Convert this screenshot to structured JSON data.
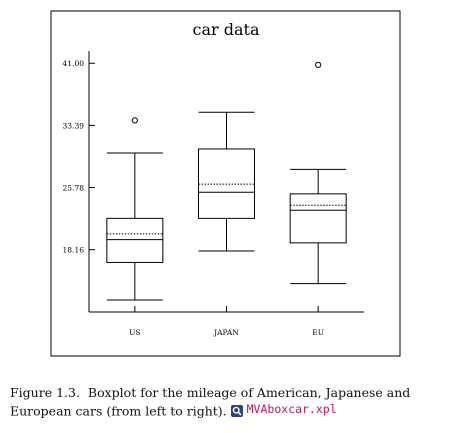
{
  "chart_data": {
    "type": "boxplot",
    "title": "car data",
    "categories": [
      "US",
      "JAPAN",
      "EU"
    ],
    "yticks": [
      "18.16",
      "25.78",
      "33.39",
      "41.00"
    ],
    "ylim": [
      12.0,
      42.5
    ],
    "boxes": [
      {
        "name": "US",
        "whisker_low": 12.0,
        "q1": 16.6,
        "median": 19.4,
        "mean": 20.1,
        "q3": 22.0,
        "whisker_high": 30.0,
        "outliers": [
          34.0
        ]
      },
      {
        "name": "JAPAN",
        "whisker_low": 18.0,
        "q1": 22.0,
        "median": 25.2,
        "mean": 26.2,
        "q3": 30.5,
        "whisker_high": 35.0,
        "outliers": []
      },
      {
        "name": "EU",
        "whisker_low": 14.0,
        "q1": 19.0,
        "median": 23.0,
        "mean": 23.6,
        "q3": 25.0,
        "whisker_high": 28.0,
        "outliers": [
          40.8
        ]
      }
    ]
  },
  "caption": {
    "label": "Figure 1.3.",
    "text": "Boxplot for the mileage of American, Japanese and European cars (from left to right).",
    "quantlet_icon": "magnifier-icon",
    "quantlet_name": "MVAboxcar.xpl",
    "quantlet_color": "#c0175d"
  }
}
